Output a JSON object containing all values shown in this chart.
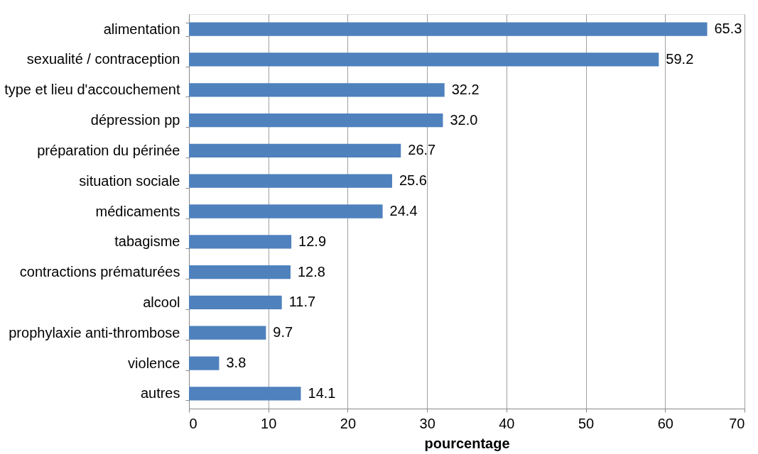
{
  "chart_data": {
    "type": "bar",
    "orientation": "horizontal",
    "xlabel": "pourcentage",
    "categories": [
      "alimentation",
      "sexualité / contraception",
      "type et lieu d'accouchement",
      "dépression pp",
      "préparation du périnée",
      "situation sociale",
      "médicaments",
      "tabagisme",
      "contractions prématurées",
      "alcool",
      "prophylaxie anti-thrombose",
      "violence",
      "autres"
    ],
    "values": [
      65.3,
      59.2,
      32.2,
      32.0,
      26.7,
      25.6,
      24.4,
      12.9,
      12.8,
      11.7,
      9.7,
      3.8,
      14.1
    ],
    "value_labels": [
      "65.3",
      "59.2",
      "32.2",
      "32.0",
      "26.7",
      "25.6",
      "24.4",
      "12.9",
      "12.8",
      "11.7",
      "9.7",
      "3.8",
      "14.1"
    ],
    "color": "#4f81bd",
    "xlim": [
      0,
      70
    ],
    "xticks": [
      0,
      10,
      20,
      30,
      40,
      50,
      60,
      70
    ],
    "grid": "x"
  }
}
